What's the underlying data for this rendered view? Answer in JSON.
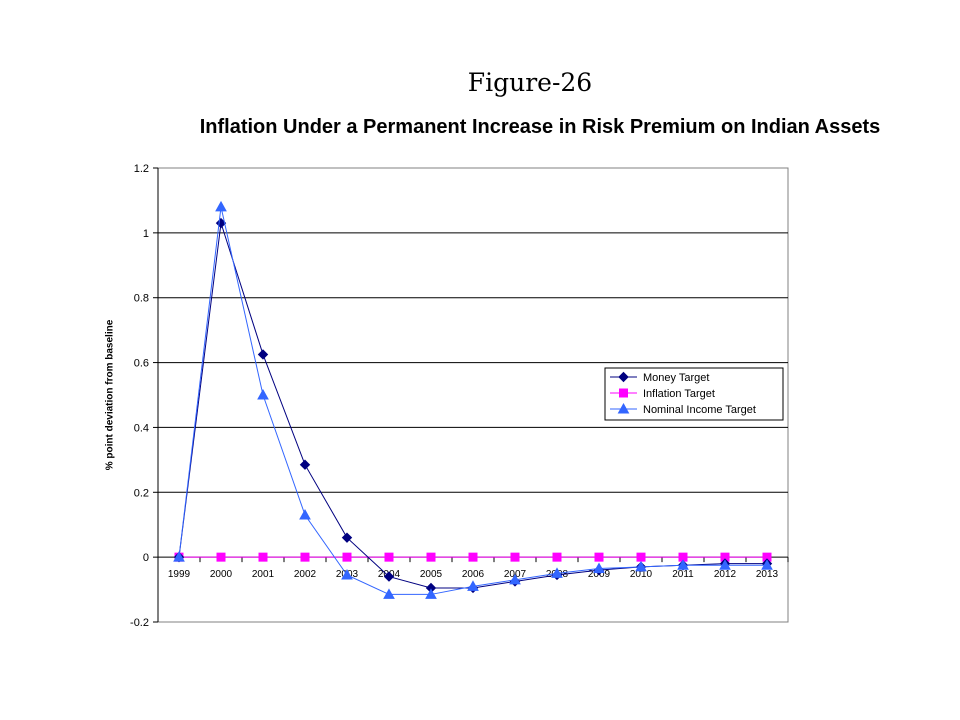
{
  "figure_caption": "Figure-26",
  "chart_data": {
    "type": "line",
    "title": "Inflation Under a Permanent Increase in Risk Premium on Indian Assets",
    "xlabel": "",
    "ylabel": "% point deviation from baseline",
    "categories": [
      "1999",
      "2000",
      "2001",
      "2002",
      "2003",
      "2004",
      "2005",
      "2006",
      "2007",
      "2008",
      "2009",
      "2010",
      "2011",
      "2012",
      "2013"
    ],
    "ylim": [
      -0.2,
      1.2
    ],
    "yticks": [
      -0.2,
      0,
      0.2,
      0.4,
      0.6,
      0.8,
      1,
      1.2
    ],
    "ytick_labels": [
      "-0.2",
      "0",
      "0.2",
      "0.4",
      "0.6",
      "0.8",
      "1",
      "1.2"
    ],
    "grid": true,
    "legend_position": "right",
    "series": [
      {
        "name": "Money Target",
        "color": "#000080",
        "marker": "diamond",
        "values": [
          0,
          1.03,
          0.625,
          0.285,
          0.06,
          -0.06,
          -0.095,
          -0.095,
          -0.075,
          -0.055,
          -0.04,
          -0.03,
          -0.025,
          -0.02,
          -0.02
        ]
      },
      {
        "name": "Inflation Target",
        "color": "#FF00FF",
        "marker": "square",
        "values": [
          0,
          0,
          0,
          0,
          0,
          0,
          0,
          0,
          0,
          0,
          0,
          0,
          0,
          0,
          0
        ]
      },
      {
        "name": "Nominal Income Target",
        "color": "#3366FF",
        "marker": "triangle",
        "values": [
          0,
          1.08,
          0.5,
          0.13,
          -0.055,
          -0.115,
          -0.115,
          -0.09,
          -0.07,
          -0.05,
          -0.035,
          -0.03,
          -0.025,
          -0.025,
          -0.025
        ]
      }
    ]
  }
}
